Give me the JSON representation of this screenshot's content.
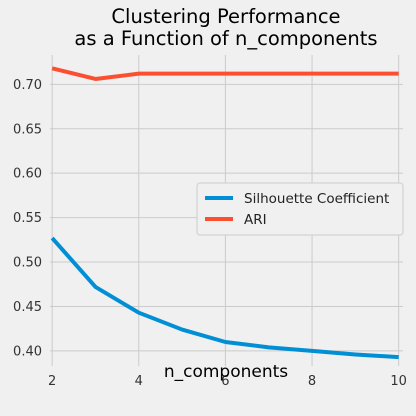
{
  "chart_data": {
    "type": "line",
    "title_lines": [
      "Clustering Performance",
      "as a Function of n_components"
    ],
    "xlabel": "n_components",
    "ylabel": "",
    "xlim": [
      1.95,
      10.1
    ],
    "ylim": [
      0.383,
      0.733
    ],
    "xticks": [
      2,
      4,
      6,
      8,
      10
    ],
    "yticks": [
      0.4,
      0.45,
      0.5,
      0.55,
      0.6,
      0.65,
      0.7
    ],
    "ytick_labels": [
      "0.40",
      "0.45",
      "0.50",
      "0.55",
      "0.60",
      "0.65",
      "0.70"
    ],
    "grid": true,
    "legend_position": "center-right",
    "x": [
      2,
      3,
      4,
      5,
      6,
      7,
      8,
      9,
      10
    ],
    "series": [
      {
        "name": "Silhouette Coefficient",
        "color": "#008fd5",
        "values": [
          0.527,
          0.472,
          0.443,
          0.424,
          0.41,
          0.404,
          0.4,
          0.396,
          0.393
        ]
      },
      {
        "name": "ARI",
        "color": "#fc4f30",
        "values": [
          0.718,
          0.706,
          0.712,
          0.712,
          0.712,
          0.712,
          0.712,
          0.712,
          0.712
        ]
      }
    ]
  }
}
